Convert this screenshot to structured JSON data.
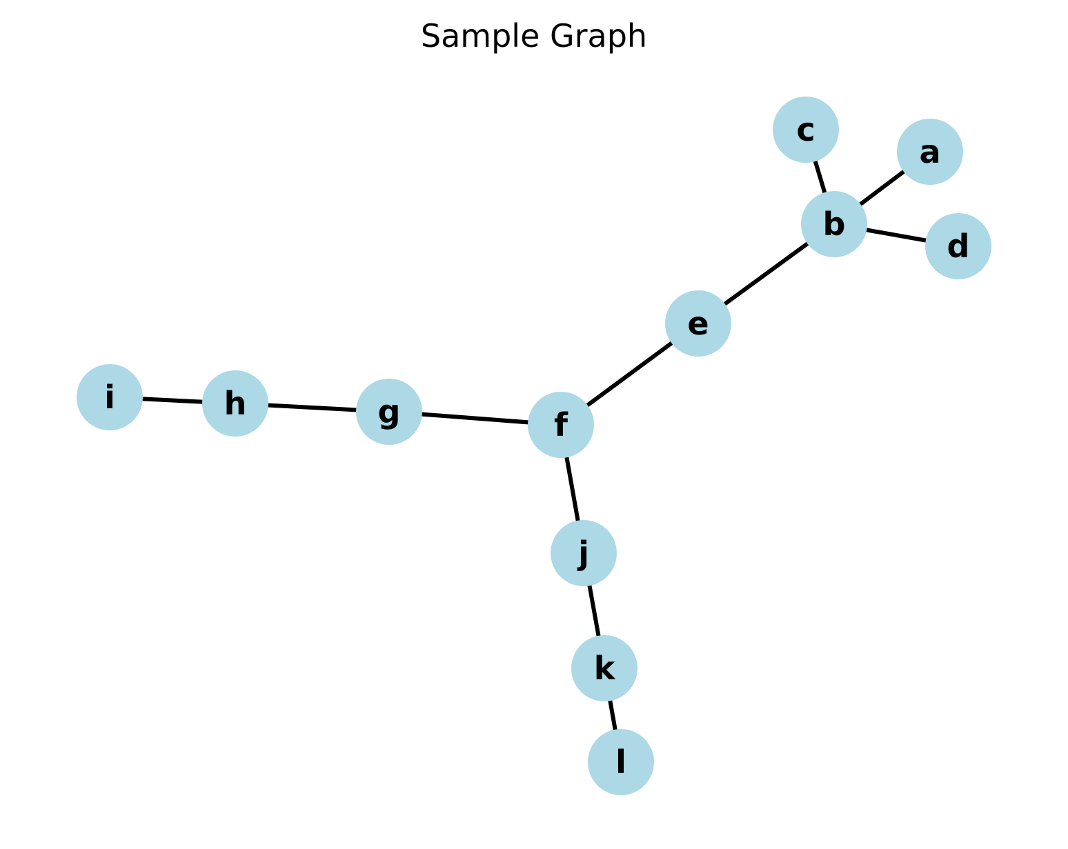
{
  "title": "Sample Graph",
  "colors": {
    "node_fill": "#add8e6",
    "edge": "#000000",
    "label": "#000000",
    "background": "#ffffff"
  },
  "nodes": [
    {
      "id": "a",
      "label": "a"
    },
    {
      "id": "b",
      "label": "b"
    },
    {
      "id": "c",
      "label": "c"
    },
    {
      "id": "d",
      "label": "d"
    },
    {
      "id": "e",
      "label": "e"
    },
    {
      "id": "f",
      "label": "f"
    },
    {
      "id": "g",
      "label": "g"
    },
    {
      "id": "h",
      "label": "h"
    },
    {
      "id": "i",
      "label": "i"
    },
    {
      "id": "j",
      "label": "j"
    },
    {
      "id": "k",
      "label": "k"
    },
    {
      "id": "l",
      "label": "l"
    }
  ],
  "edges": [
    {
      "source": "a",
      "target": "b"
    },
    {
      "source": "c",
      "target": "b"
    },
    {
      "source": "d",
      "target": "b"
    },
    {
      "source": "b",
      "target": "e"
    },
    {
      "source": "e",
      "target": "f"
    },
    {
      "source": "f",
      "target": "g"
    },
    {
      "source": "g",
      "target": "h"
    },
    {
      "source": "h",
      "target": "i"
    },
    {
      "source": "f",
      "target": "j"
    },
    {
      "source": "j",
      "target": "k"
    },
    {
      "source": "k",
      "target": "l"
    }
  ]
}
